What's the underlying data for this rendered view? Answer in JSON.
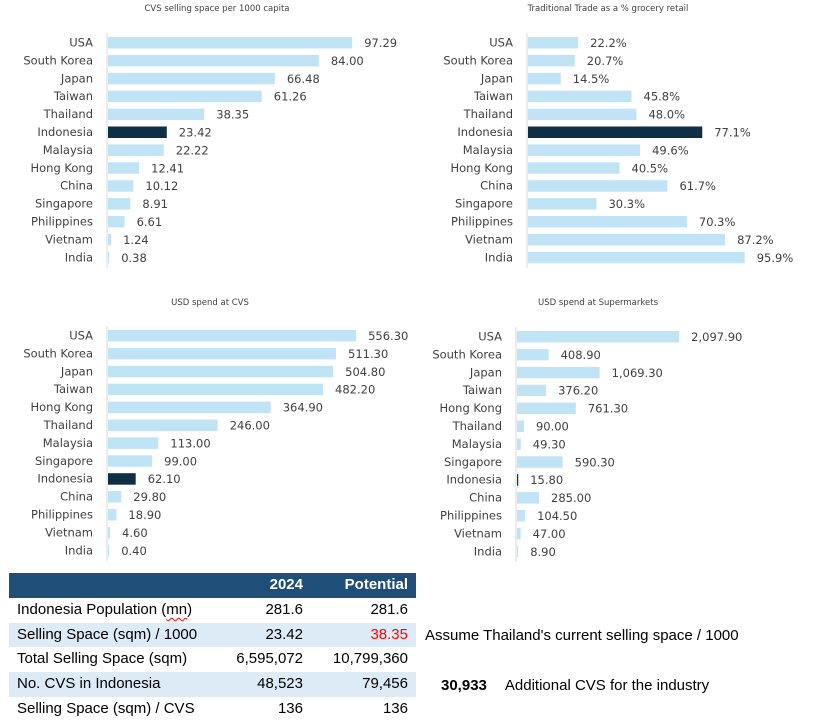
{
  "chart_data": [
    {
      "type": "bar",
      "orientation": "horizontal",
      "title": "CVS selling space per 1000 capita",
      "categories": [
        "USA",
        "South Korea",
        "Japan",
        "Taiwan",
        "Thailand",
        "Indonesia",
        "Malaysia",
        "Hong Kong",
        "China",
        "Singapore",
        "Philippines",
        "Vietnam",
        "India"
      ],
      "values": [
        97.29,
        84.0,
        66.48,
        61.26,
        38.35,
        23.42,
        22.22,
        12.41,
        10.12,
        8.91,
        6.61,
        1.24,
        0.38
      ],
      "labels": [
        "97.29",
        "84.00",
        "66.48",
        "61.26",
        "38.35",
        "23.42",
        "22.22",
        "12.41",
        "10.12",
        "8.91",
        "6.61",
        "1.24",
        "0.38"
      ],
      "highlight": "Indonesia",
      "xlim": [
        0,
        100
      ],
      "grid": false,
      "xlabel": "",
      "ylabel": ""
    },
    {
      "type": "bar",
      "orientation": "horizontal",
      "title": "Traditional Trade as a % grocery retail",
      "categories": [
        "USA",
        "South Korea",
        "Japan",
        "Taiwan",
        "Thailand",
        "Indonesia",
        "Malaysia",
        "Hong Kong",
        "China",
        "Singapore",
        "Philippines",
        "Vietnam",
        "India"
      ],
      "values": [
        22.2,
        20.7,
        14.5,
        45.8,
        48.0,
        77.1,
        49.6,
        40.5,
        61.7,
        30.3,
        70.3,
        87.2,
        95.9
      ],
      "labels": [
        "22.2%",
        "20.7%",
        "14.5%",
        "45.8%",
        "48.0%",
        "77.1%",
        "49.6%",
        "40.5%",
        "61.7%",
        "30.3%",
        "70.3%",
        "87.2%",
        "95.9%"
      ],
      "highlight": "Indonesia",
      "xlim": [
        0,
        100
      ],
      "grid": false,
      "xlabel": "",
      "ylabel": ""
    },
    {
      "type": "bar",
      "orientation": "horizontal",
      "title": "USD spend at CVS",
      "categories": [
        "USA",
        "South Korea",
        "Japan",
        "Taiwan",
        "Hong Kong",
        "Thailand",
        "Malaysia",
        "Singapore",
        "Indonesia",
        "China",
        "Philippines",
        "Vietnam",
        "India"
      ],
      "values": [
        556.3,
        511.3,
        504.8,
        482.2,
        364.9,
        246.0,
        113.0,
        99.0,
        62.1,
        29.8,
        18.9,
        4.6,
        0.4
      ],
      "labels": [
        "556.30",
        "511.30",
        "504.80",
        "482.20",
        "364.90",
        "246.00",
        "113.00",
        "99.00",
        "62.10",
        "29.80",
        "18.90",
        "4.60",
        "0.40"
      ],
      "highlight": "Indonesia",
      "xlim": [
        0,
        560
      ],
      "grid": false,
      "xlabel": "",
      "ylabel": ""
    },
    {
      "type": "bar",
      "orientation": "horizontal",
      "title": "USD spend at Supermarkets",
      "categories": [
        "USA",
        "South Korea",
        "Japan",
        "Taiwan",
        "Hong Kong",
        "Thailand",
        "Malaysia",
        "Singapore",
        "Indonesia",
        "China",
        "Philippines",
        "Vietnam",
        "India"
      ],
      "values": [
        2097.9,
        408.9,
        1069.3,
        376.2,
        761.3,
        90.0,
        49.3,
        590.3,
        15.8,
        285.0,
        104.5,
        47.0,
        8.9
      ],
      "labels": [
        "2,097.90",
        "408.90",
        "1,069.30",
        "376.20",
        "761.30",
        "90.00",
        "49.30",
        "590.30",
        "15.80",
        "285.00",
        "104.50",
        "47.00",
        "8.90"
      ],
      "highlight": "Indonesia",
      "xlim": [
        0,
        2100
      ],
      "grid": false,
      "xlabel": "",
      "ylabel": ""
    }
  ],
  "colors": {
    "bar": "#C0E4F5",
    "highlight_bar": "#0E2F44",
    "label_text": "#404040",
    "axis_line": "#D9D9D9",
    "table_header": "#1F4E79",
    "table_alt_row": "#DDEBF7",
    "emphasis_red": "#FF0000"
  },
  "table": {
    "headers": [
      "",
      "2024",
      "Potential"
    ],
    "rows": [
      {
        "label_pre": "Indonesia Population (",
        "label_flag": "mn",
        "label_post": ")",
        "y2024": "281.6",
        "potential": "281.6"
      },
      {
        "label": "Selling Space (sqm) / 1000",
        "y2024": "23.42",
        "potential": "38.35"
      },
      {
        "label": "Total Selling Space (sqm)",
        "y2024": "6,595,072",
        "potential": "10,799,360"
      },
      {
        "label": "No. CVS in Indonesia",
        "y2024": "48,523",
        "potential": "79,456"
      },
      {
        "label": "Selling Space (sqm) / CVS",
        "y2024": "136",
        "potential": "136"
      }
    ]
  },
  "notes": {
    "assumption": "Assume Thailand's current selling space / 1000",
    "additional_value": "30,933",
    "additional_label": "Additional CVS for the industry"
  }
}
